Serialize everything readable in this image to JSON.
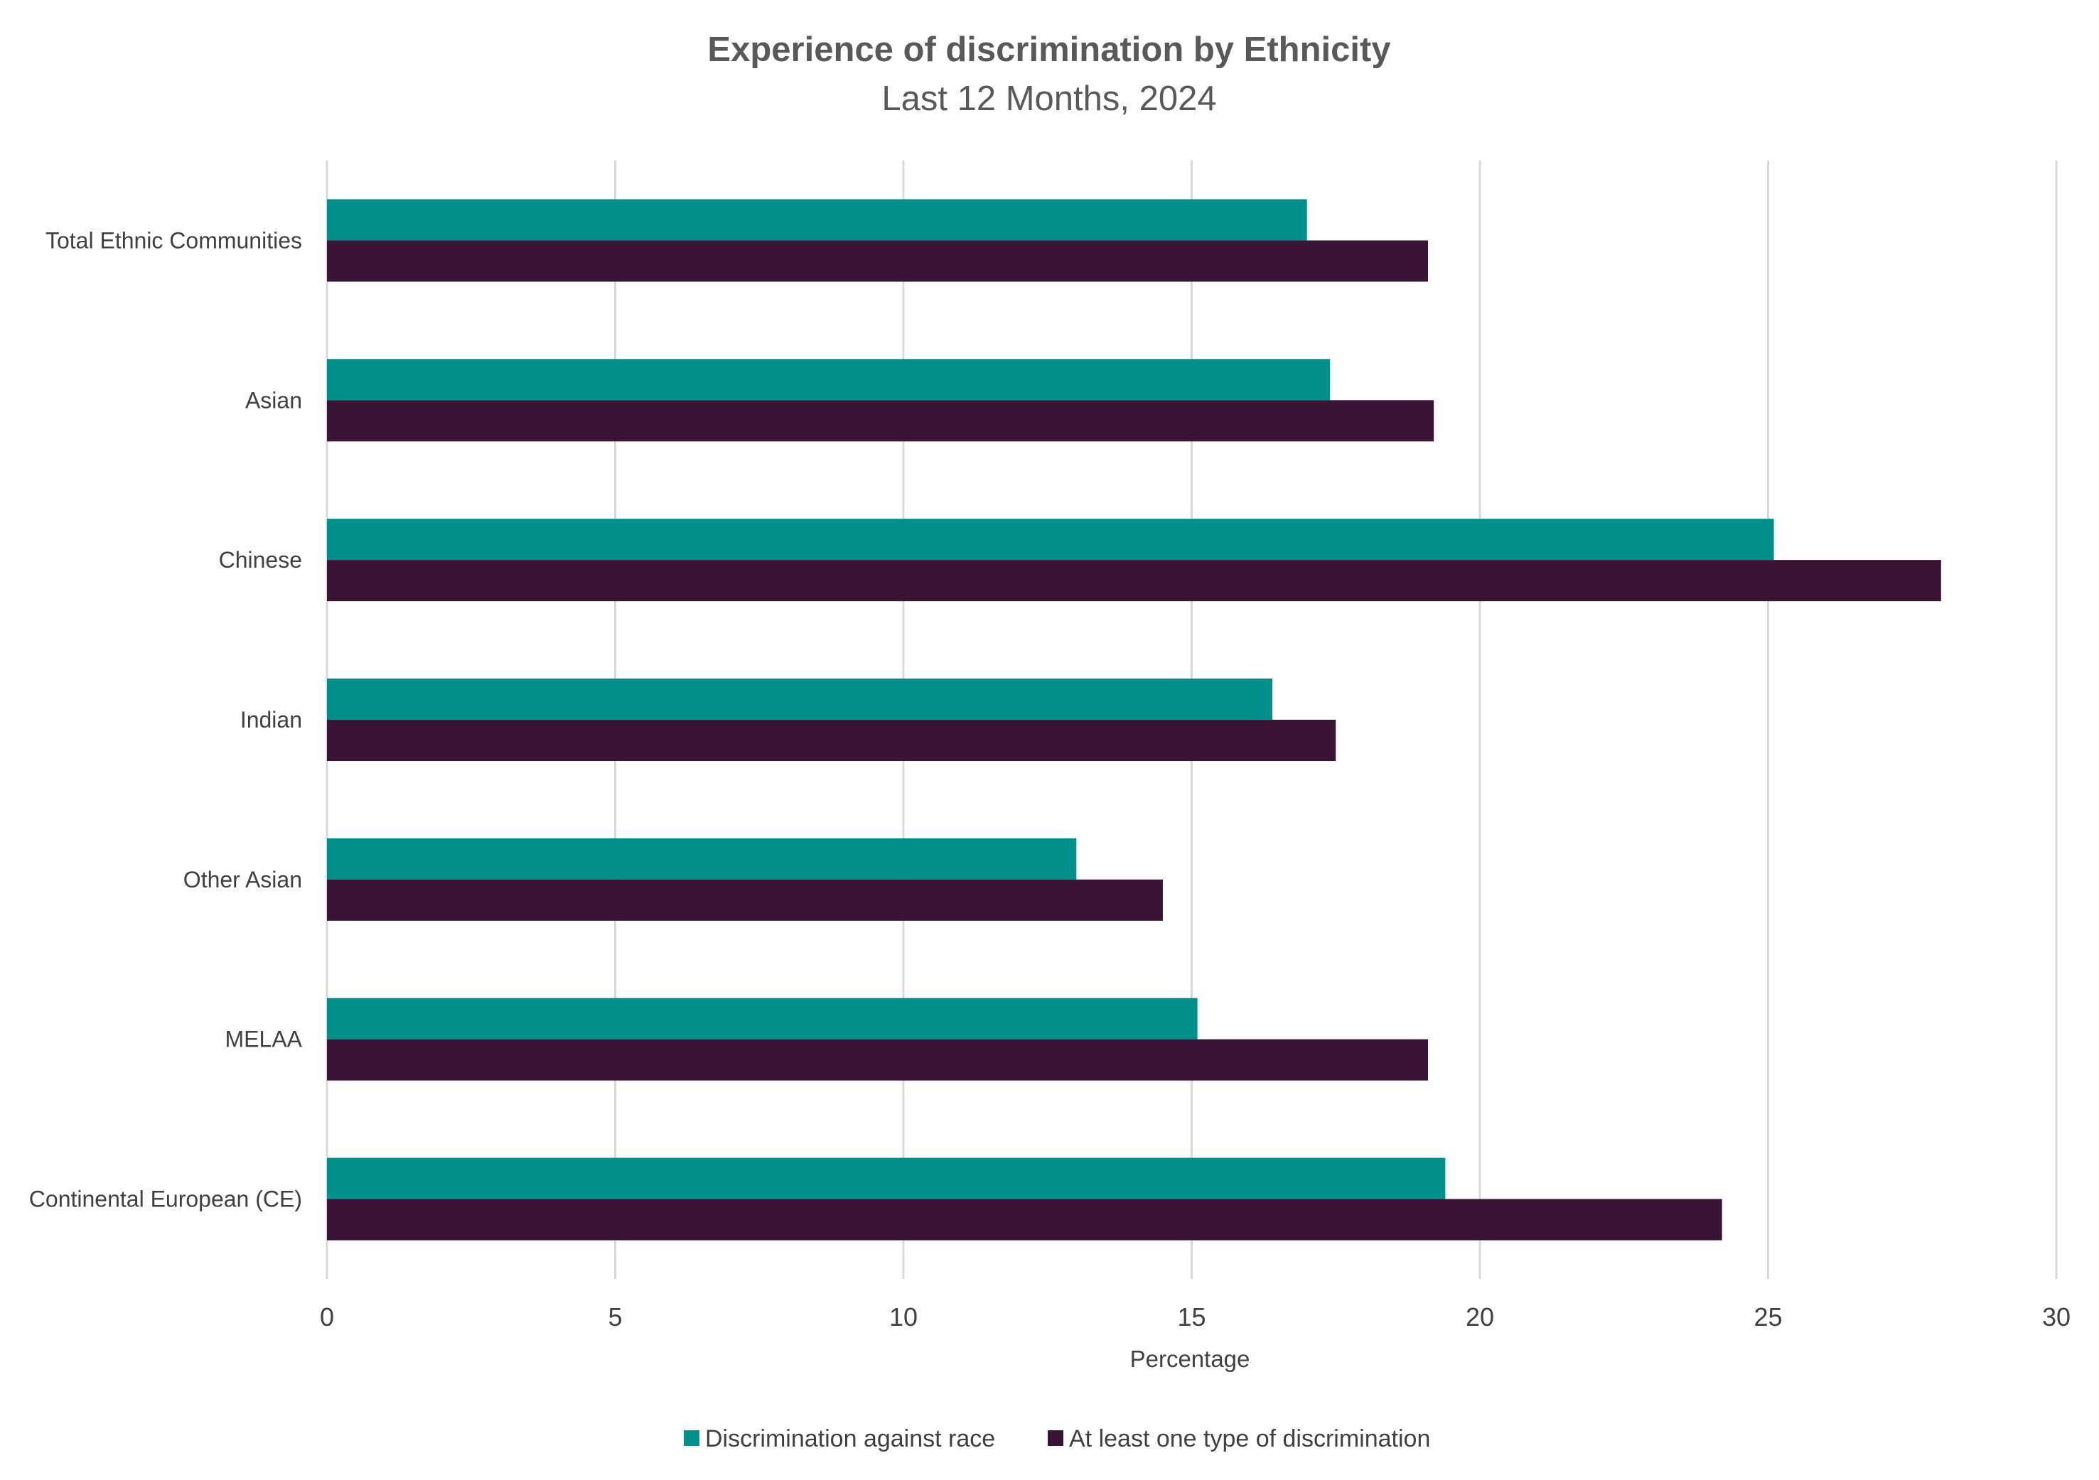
{
  "chart_data": {
    "type": "bar",
    "orientation": "horizontal",
    "title": "Experience of discrimination by Ethnicity",
    "subtitle": "Last 12 Months, 2024",
    "xlabel": "Percentage",
    "ylabel": "",
    "xlim": [
      0,
      30
    ],
    "xticks": [
      0,
      5,
      10,
      15,
      20,
      25,
      30
    ],
    "grid": "vertical",
    "legend_position": "bottom",
    "categories": [
      "Total Ethnic Communities",
      "Asian",
      "Chinese",
      "Indian",
      "Other Asian",
      "MELAA",
      "Continental European (CE)"
    ],
    "series": [
      {
        "name": "Discrimination against race",
        "color": "#008F8A",
        "values": [
          17.0,
          17.4,
          25.1,
          16.4,
          13.0,
          15.1,
          19.4
        ]
      },
      {
        "name": "At least one type of discrimination",
        "color": "#3A1435",
        "values": [
          19.1,
          19.2,
          28.0,
          17.5,
          14.5,
          19.1,
          24.2
        ]
      }
    ]
  }
}
